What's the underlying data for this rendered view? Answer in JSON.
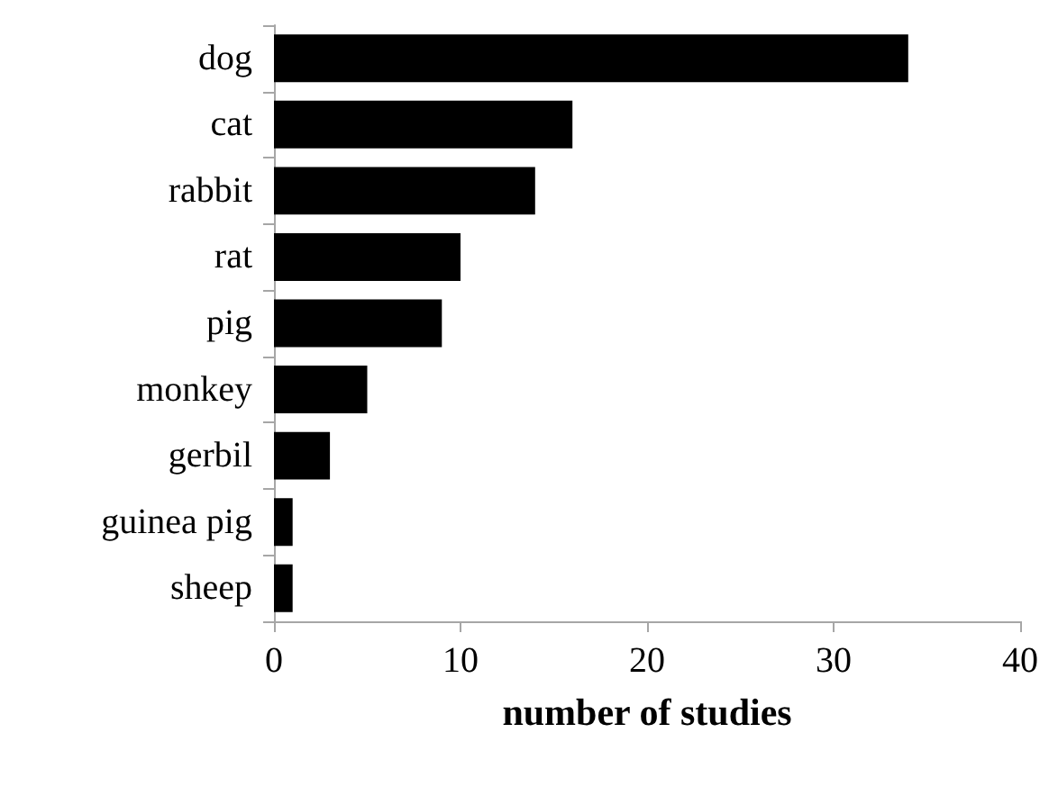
{
  "chart_data": {
    "type": "bar",
    "orientation": "horizontal",
    "xlabel": "number of studies",
    "categories": [
      "dog",
      "cat",
      "rabbit",
      "rat",
      "pig",
      "monkey",
      "gerbil",
      "guinea pig",
      "sheep"
    ],
    "values": [
      34,
      16,
      14,
      10,
      9,
      5,
      3,
      1,
      1
    ],
    "color": "#000000",
    "xlim": [
      0,
      40
    ],
    "xticks": [
      0,
      10,
      20,
      30,
      40
    ],
    "grid": false
  }
}
